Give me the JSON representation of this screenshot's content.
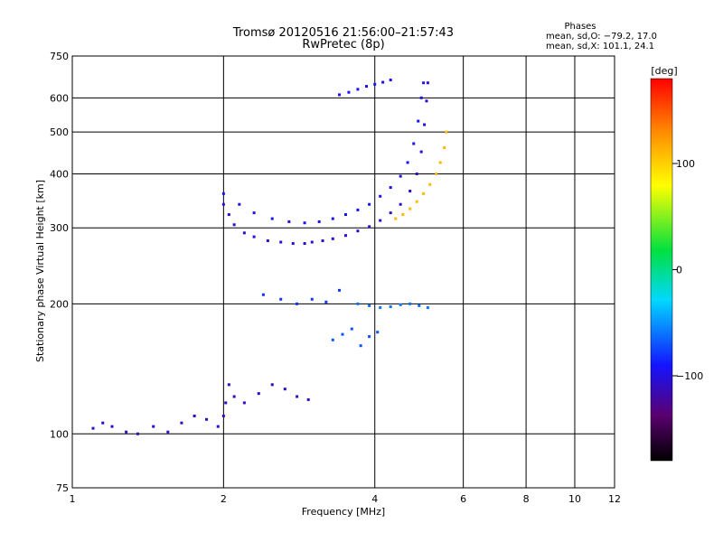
{
  "chart_data": {
    "type": "scatter",
    "title": "Tromsø 20120516 21:56:00–21:57:43",
    "subtitle": "RwPretec (8p)",
    "xlabel": "Frequency [MHz]",
    "ylabel": "Stationary phase Virtual Height [km]",
    "x_scale": "log",
    "y_scale": "log",
    "xlim": [
      1,
      12
    ],
    "ylim": [
      75,
      750
    ],
    "x_ticks": [
      "1",
      "2",
      "4",
      "6",
      "8",
      "10",
      "12"
    ],
    "y_ticks": [
      "75",
      "100",
      "200",
      "300",
      "400",
      "500",
      "600",
      "750"
    ],
    "grid": true,
    "phase_stats": {
      "heading": "Phases",
      "line1": "mean, sd,O: −79.2, 17.0",
      "line2": "mean, sd,X: 101.1, 24.1"
    },
    "colorbar": {
      "label": "[deg]",
      "ticks": [
        "100",
        "0",
        "−100"
      ],
      "range": [
        -180,
        180
      ]
    },
    "traces": [
      {
        "phase": -110,
        "points": [
          [
            1.1,
            103
          ],
          [
            1.15,
            106
          ],
          [
            1.2,
            104
          ],
          [
            1.28,
            101
          ],
          [
            1.35,
            100
          ],
          [
            1.45,
            104
          ],
          [
            1.55,
            101
          ],
          [
            1.65,
            106
          ],
          [
            1.75,
            110
          ],
          [
            1.85,
            108
          ],
          [
            1.95,
            104
          ],
          [
            2.0,
            110
          ],
          [
            2.02,
            118
          ],
          [
            2.05,
            130
          ],
          [
            2.1,
            122
          ],
          [
            2.2,
            118
          ],
          [
            2.35,
            124
          ],
          [
            2.5,
            130
          ],
          [
            2.65,
            127
          ],
          [
            2.8,
            122
          ],
          [
            2.95,
            120
          ]
        ]
      },
      {
        "phase": -105,
        "points": [
          [
            2.0,
            340
          ],
          [
            2.05,
            322
          ],
          [
            2.1,
            305
          ],
          [
            2.2,
            292
          ],
          [
            2.3,
            286
          ],
          [
            2.45,
            280
          ],
          [
            2.6,
            278
          ],
          [
            2.75,
            276
          ],
          [
            2.9,
            276
          ],
          [
            3.0,
            278
          ],
          [
            3.15,
            280
          ],
          [
            3.3,
            283
          ],
          [
            3.5,
            288
          ],
          [
            3.7,
            295
          ],
          [
            3.9,
            302
          ],
          [
            4.1,
            312
          ],
          [
            4.3,
            325
          ],
          [
            4.5,
            340
          ],
          [
            4.7,
            365
          ],
          [
            4.85,
            400
          ],
          [
            4.95,
            450
          ],
          [
            5.02,
            520
          ],
          [
            5.07,
            590
          ],
          [
            5.1,
            650
          ]
        ]
      },
      {
        "phase": -95,
        "points": [
          [
            2.0,
            360
          ],
          [
            2.15,
            340
          ],
          [
            2.3,
            325
          ],
          [
            2.5,
            315
          ],
          [
            2.7,
            310
          ],
          [
            2.9,
            308
          ],
          [
            3.1,
            310
          ],
          [
            3.3,
            315
          ],
          [
            3.5,
            322
          ],
          [
            3.7,
            330
          ],
          [
            3.9,
            340
          ],
          [
            4.1,
            355
          ],
          [
            4.3,
            372
          ],
          [
            4.5,
            395
          ],
          [
            4.65,
            425
          ],
          [
            4.78,
            470
          ],
          [
            4.88,
            530
          ],
          [
            4.95,
            600
          ],
          [
            5.0,
            650
          ]
        ]
      },
      {
        "phase": 110,
        "points": [
          [
            4.4,
            315
          ],
          [
            4.55,
            322
          ],
          [
            4.7,
            332
          ],
          [
            4.85,
            345
          ],
          [
            5.0,
            360
          ],
          [
            5.15,
            378
          ],
          [
            5.3,
            400
          ],
          [
            5.4,
            425
          ],
          [
            5.5,
            460
          ],
          [
            5.55,
            500
          ]
        ]
      },
      {
        "phase": -95,
        "points": [
          [
            3.4,
            610
          ],
          [
            3.55,
            618
          ],
          [
            3.7,
            628
          ],
          [
            3.85,
            638
          ],
          [
            4.0,
            645
          ],
          [
            4.15,
            652
          ],
          [
            4.3,
            660
          ]
        ]
      },
      {
        "phase": -60,
        "points": [
          [
            3.7,
            200
          ],
          [
            3.9,
            198
          ],
          [
            4.1,
            196
          ],
          [
            4.3,
            197
          ],
          [
            4.5,
            199
          ],
          [
            4.7,
            200
          ],
          [
            4.9,
            198
          ],
          [
            5.1,
            196
          ]
        ]
      },
      {
        "phase": -80,
        "points": [
          [
            2.4,
            210
          ],
          [
            2.6,
            205
          ],
          [
            2.8,
            200
          ],
          [
            3.0,
            205
          ],
          [
            3.2,
            202
          ],
          [
            3.4,
            215
          ]
        ]
      },
      {
        "phase": -70,
        "points": [
          [
            3.3,
            165
          ],
          [
            3.45,
            170
          ],
          [
            3.6,
            175
          ],
          [
            3.75,
            160
          ],
          [
            3.9,
            168
          ],
          [
            4.05,
            172
          ]
        ]
      }
    ]
  }
}
